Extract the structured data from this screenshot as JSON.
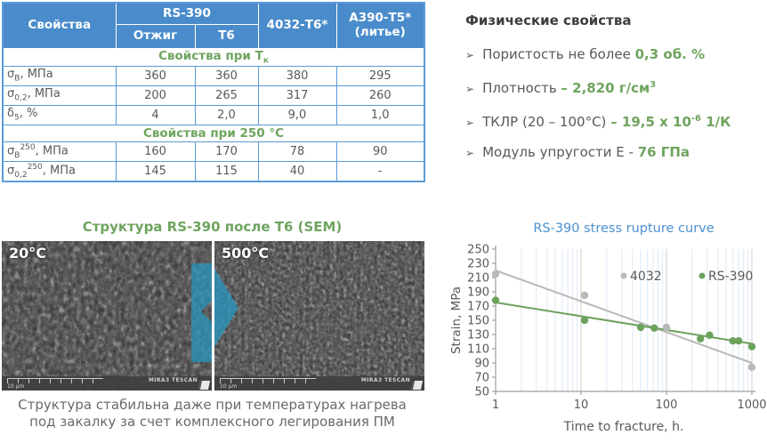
{
  "colors": {
    "header_blue": "#4a8ccb",
    "border_blue": "#5b9bd5",
    "green": "#6fa45f",
    "text_gray": "#595959",
    "chart_title_blue": "#4a90d2",
    "arrow_blue": "rgba(42,150,190,0.75)"
  },
  "table": {
    "corner_header": "Свойства",
    "group_header": "RS-390",
    "sub_headers": [
      "Отжиг",
      "Т6"
    ],
    "col3_header": "4032-Т6*",
    "col4_header_line1": "А390-Т5*",
    "col4_header_line2": "(литье)",
    "sections": [
      {
        "title_parts": [
          {
            "t": "Свойства при Т"
          },
          {
            "sub": "к"
          }
        ],
        "rows": [
          {
            "label_parts": [
              {
                "t": "σ"
              },
              {
                "sub": "В"
              },
              {
                "t": ", МПа"
              }
            ],
            "values": [
              "360",
              "360",
              "380",
              "295"
            ]
          },
          {
            "label_parts": [
              {
                "t": "σ"
              },
              {
                "sub": "0,2"
              },
              {
                "t": ", МПа"
              }
            ],
            "values": [
              "200",
              "265",
              "317",
              "260"
            ]
          },
          {
            "label_parts": [
              {
                "t": "δ"
              },
              {
                "sub": "5"
              },
              {
                "t": ", %"
              }
            ],
            "values": [
              "4",
              "2,0",
              "9,0",
              "1,0"
            ]
          }
        ]
      },
      {
        "title_parts": [
          {
            "t": "Свойства при 250 °С"
          }
        ],
        "rows": [
          {
            "label_parts": [
              {
                "t": "σ"
              },
              {
                "sub": "В"
              },
              {
                "sup": "250"
              },
              {
                "t": ", МПа"
              }
            ],
            "values": [
              "160",
              "170",
              "78",
              "90"
            ]
          },
          {
            "label_parts": [
              {
                "t": "σ"
              },
              {
                "sub": "0,2"
              },
              {
                "sup": "250"
              },
              {
                "t": ", МПа"
              }
            ],
            "values": [
              "145",
              "115",
              "40",
              "-"
            ]
          }
        ]
      }
    ]
  },
  "physical": {
    "heading": "Физические свойства",
    "bullet_marker": "➢",
    "bullets": [
      [
        {
          "t": "Пористость не более "
        },
        {
          "g": "0,3 об. %"
        }
      ],
      [
        {
          "t": "Плотность "
        },
        {
          "g": "– 2,820 г/см"
        },
        {
          "gsup": "3"
        }
      ],
      [
        {
          "t": "ТКЛР (20 – 100°С) "
        },
        {
          "g": "– 19,5 x 10"
        },
        {
          "gsup": "-6"
        },
        {
          "g": " 1/К"
        }
      ],
      [
        {
          "t": "Модуль упругости Е - "
        },
        {
          "g": "76 ГПа"
        }
      ]
    ]
  },
  "structure": {
    "title": "Структура RS-390 после Т6 (SEM)",
    "images": [
      {
        "label": "20°С",
        "scale_label": "10 μm",
        "watermark": "MIRA3 TESCAN"
      },
      {
        "label": "500°С",
        "scale_label": "10 μm",
        "watermark": "MIRA3 TESCAN"
      }
    ],
    "caption_line1": "Структура стабильна даже при температурах нагрева",
    "caption_line2": "под закалку за счет комплексного легирования ПМ"
  },
  "chart_data": {
    "type": "scatter",
    "title": "RS-390 stress rupture curve",
    "xlabel": "Time to fracture, h.",
    "ylabel": "Strain, MPa",
    "x_scale": "log",
    "xlim": [
      1,
      1000
    ],
    "ylim": [
      50,
      250
    ],
    "x_ticks": [
      1,
      10,
      100,
      1000
    ],
    "y_ticks": [
      50,
      70,
      90,
      110,
      130,
      150,
      170,
      190,
      210,
      230,
      250
    ],
    "grid": "vertical, log minor gridlines light blue, major gray",
    "legend_position": "inside top-right",
    "series": [
      {
        "name": "4032",
        "color": "#b9b9b9",
        "points": [
          [
            1,
            215
          ],
          [
            11,
            185
          ],
          [
            100,
            140
          ],
          [
            1000,
            84
          ]
        ],
        "trendline": [
          [
            1,
            220
          ],
          [
            1000,
            90
          ]
        ]
      },
      {
        "name": "RS-390",
        "color": "#6da25d",
        "points": [
          [
            1,
            178
          ],
          [
            11,
            150
          ],
          [
            50,
            140
          ],
          [
            72,
            139
          ],
          [
            250,
            124
          ],
          [
            320,
            129
          ],
          [
            600,
            121
          ],
          [
            700,
            121
          ],
          [
            1000,
            113
          ]
        ],
        "trendline": [
          [
            1,
            175
          ],
          [
            1000,
            117
          ]
        ]
      }
    ]
  }
}
